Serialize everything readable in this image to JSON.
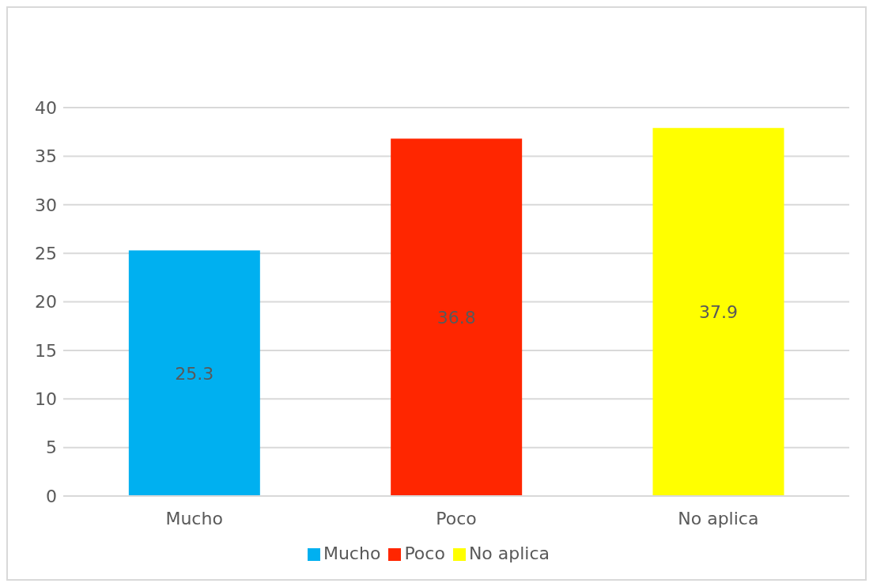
{
  "chart_data": {
    "type": "bar",
    "categories": [
      "Mucho",
      "Poco",
      "No aplica"
    ],
    "stacked": true,
    "series": [
      {
        "name": "Mucho",
        "color": "#00b0f0",
        "values": [
          25.3,
          null,
          null
        ]
      },
      {
        "name": "Poco",
        "color": "#ff2600",
        "values": [
          null,
          36.8,
          null
        ]
      },
      {
        "name": "No aplica",
        "color": "#ffff00",
        "values": [
          null,
          null,
          37.9
        ]
      }
    ],
    "ylim": [
      0,
      40
    ],
    "yticks": [
      0,
      5,
      10,
      15,
      20,
      25,
      30,
      35,
      40
    ],
    "grid": "y",
    "legend": "bottom",
    "data_labels": true
  }
}
